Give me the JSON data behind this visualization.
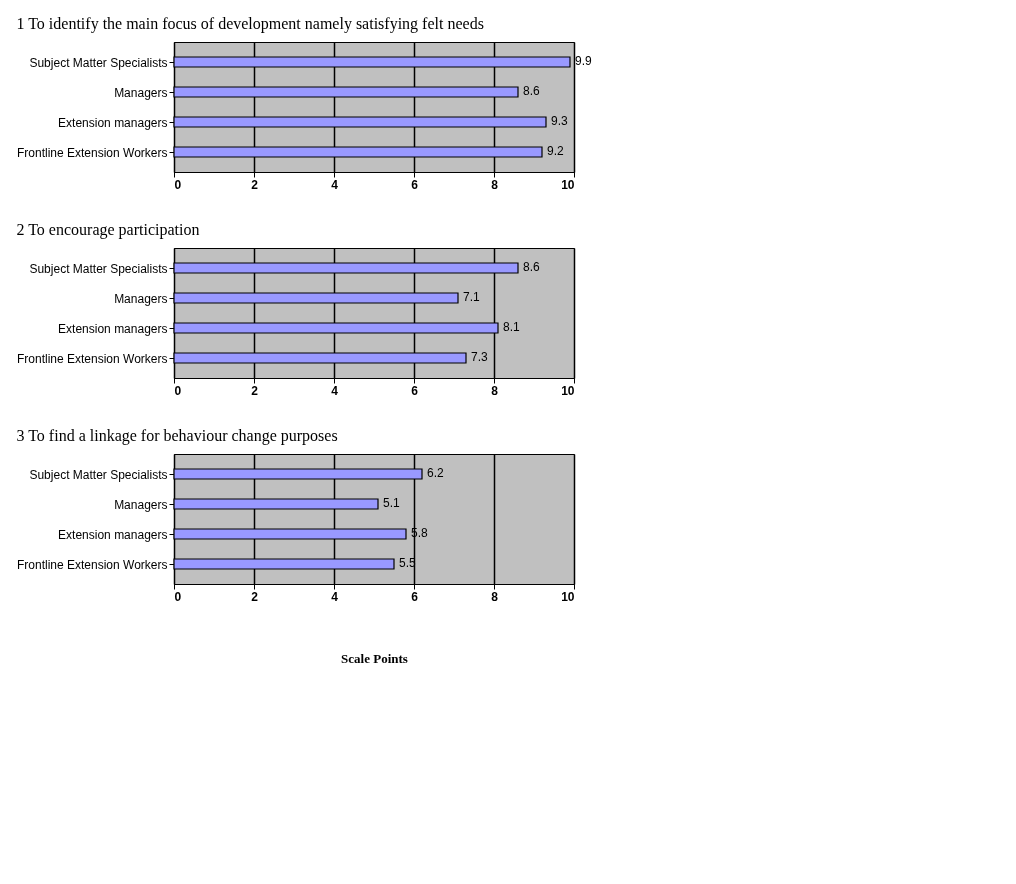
{
  "chart_data": [
    {
      "type": "bar",
      "orientation": "horizontal",
      "title": "1 To identify the main focus of development namely satisfying felt needs",
      "categories": [
        "Subject Matter Specialists",
        "Managers",
        "Extension managers",
        "Frontline Extension Workers"
      ],
      "values": [
        9.9,
        8.6,
        9.3,
        9.2
      ],
      "color": "#9999ff",
      "xlim": [
        0,
        10
      ],
      "xticks": [
        0,
        2,
        4,
        6,
        8,
        10
      ],
      "grid": "x",
      "data_labels": true
    },
    {
      "type": "bar",
      "orientation": "horizontal",
      "title": "2 To encourage participation",
      "categories": [
        "Subject Matter Specialists",
        "Managers",
        "Extension managers",
        "Frontline Extension Workers"
      ],
      "values": [
        8.6,
        7.1,
        8.1,
        7.3
      ],
      "color": "#9999ff",
      "xlim": [
        0,
        10
      ],
      "xticks": [
        0,
        2,
        4,
        6,
        8,
        10
      ],
      "grid": "x",
      "data_labels": true
    },
    {
      "type": "bar",
      "orientation": "horizontal",
      "title": "3 To find a linkage for behaviour change purposes",
      "xlabel": "Scale Points",
      "categories": [
        "Subject Matter Specialists",
        "Managers",
        "Extension managers",
        "Frontline Extension Workers"
      ],
      "values": [
        6.2,
        5.1,
        5.8,
        5.5
      ],
      "color": "#9999ff",
      "xlim": [
        0,
        10
      ],
      "xticks": [
        0,
        2,
        4,
        6,
        8,
        10
      ],
      "grid": "x",
      "data_labels": true
    }
  ]
}
